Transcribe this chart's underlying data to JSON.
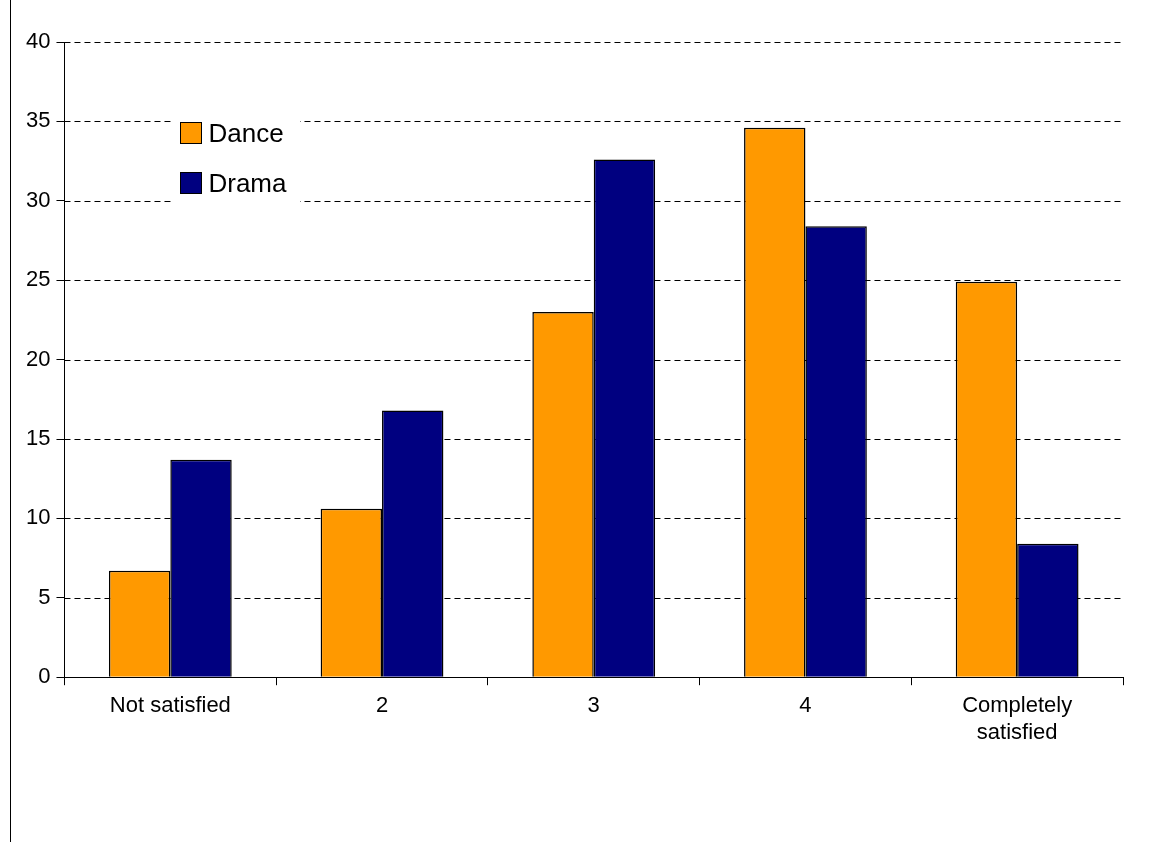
{
  "chart_data": {
    "type": "bar",
    "categories": [
      "Not satisfied",
      "2",
      "3",
      "4",
      "Completely satisfied"
    ],
    "series": [
      {
        "name": "Dance",
        "color": "#ff9900",
        "values": [
          6.7,
          10.6,
          23.0,
          34.6,
          24.9
        ]
      },
      {
        "name": "Drama",
        "color": "#000080",
        "values": [
          13.7,
          16.8,
          32.6,
          28.4,
          8.4
        ]
      }
    ],
    "ylim": [
      0,
      40
    ],
    "yticks": [
      0,
      5,
      10,
      15,
      20,
      25,
      30,
      35,
      40
    ],
    "grid": "y",
    "legend": "top left"
  }
}
